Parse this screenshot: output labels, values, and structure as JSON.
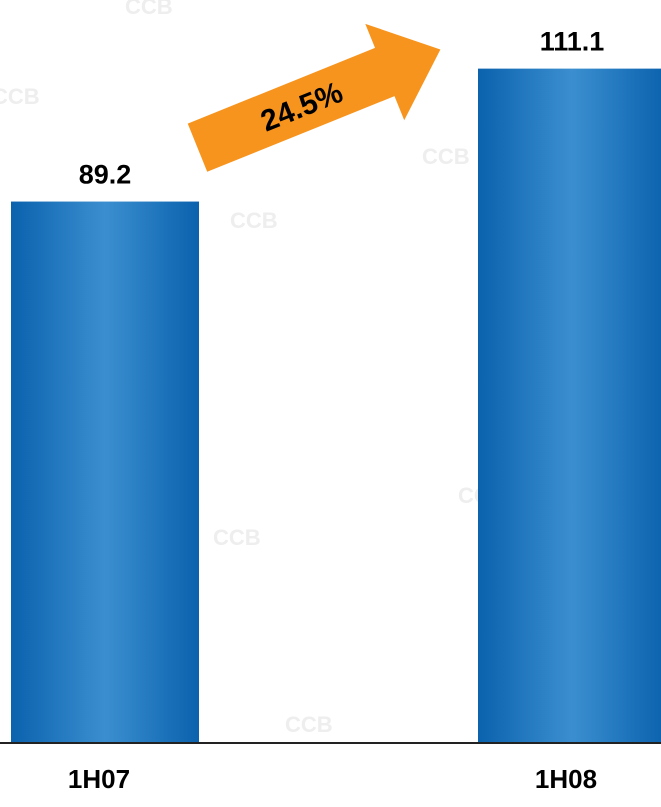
{
  "chart_data": {
    "type": "bar",
    "categories": [
      "1H07",
      "1H08"
    ],
    "values": [
      89.2,
      111.1
    ],
    "data_labels": [
      "89.2",
      "111.1"
    ],
    "ylim": [
      0,
      120
    ],
    "grid": false,
    "annotation": {
      "text": "24.5%",
      "color": "#f7941d"
    },
    "bar_colors": {
      "edge": "#0b62ad",
      "center": "#3b8fd0"
    },
    "watermark_text": "CCB"
  }
}
